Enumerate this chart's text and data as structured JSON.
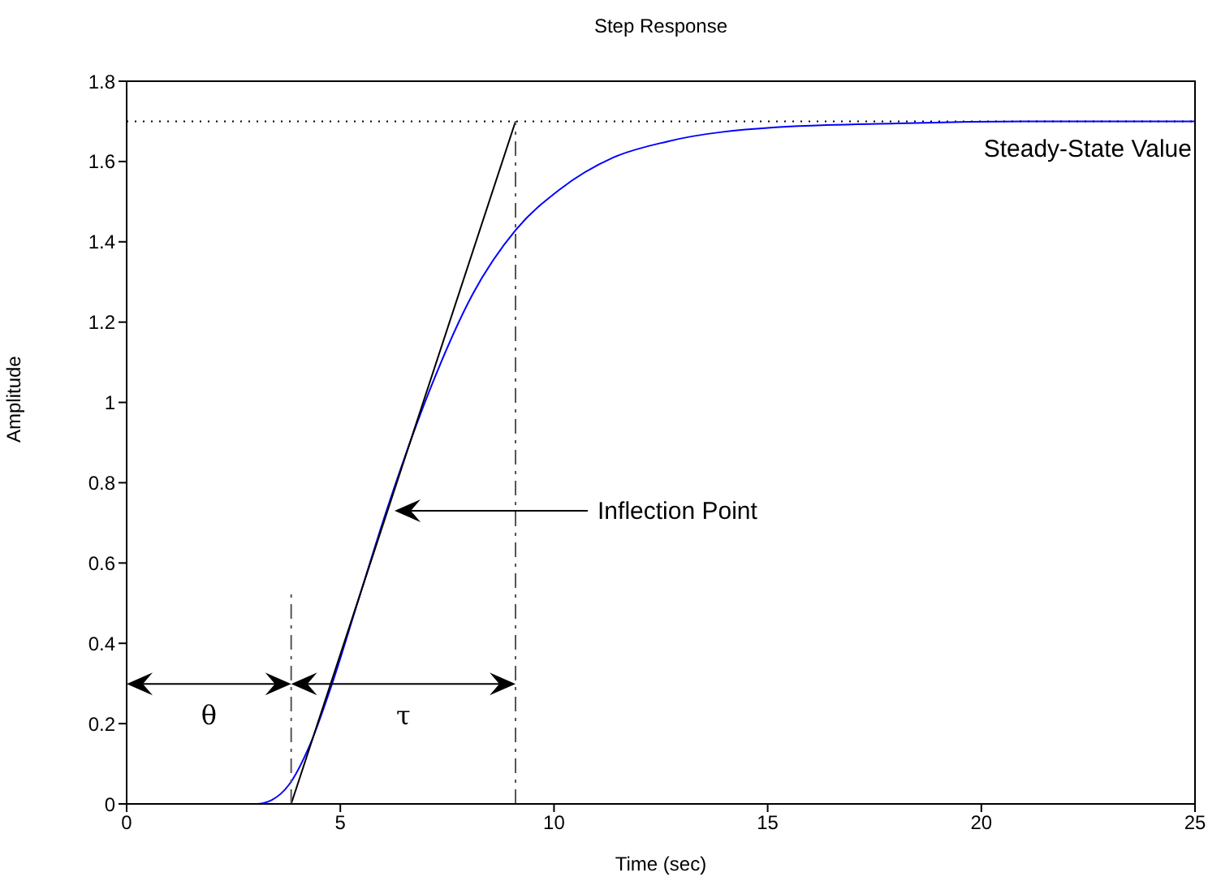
{
  "chart_data": {
    "type": "line",
    "title": "Step Response",
    "xlabel": "Time (sec)",
    "ylabel": "Amplitude",
    "xlim": [
      0,
      25
    ],
    "xticks": [
      0,
      5,
      10,
      15,
      20,
      25
    ],
    "ylim": [
      0,
      1.8
    ],
    "yticks": [
      0,
      0.2,
      0.4,
      0.6,
      0.8,
      1,
      1.2,
      1.4,
      1.6,
      1.8
    ],
    "grid": false,
    "series": [
      {
        "color": "#0000ff",
        "x": [
          0,
          3.04,
          3.4,
          3.8,
          4.3,
          4.81,
          5.4,
          6.08,
          7.09,
          8.1,
          9.11,
          10.13,
          11.39,
          12.66,
          15.19,
          18,
          21,
          25
        ],
        "values": [
          0,
          0,
          0.01,
          0.048,
          0.15,
          0.3,
          0.5,
          0.73,
          1.03,
          1.27,
          1.43,
          1.53,
          1.61,
          1.65,
          1.685,
          1.695,
          1.7,
          1.7
        ]
      },
      {
        "color": "#000000",
        "x": [
          3.85,
          9.1
        ],
        "values": [
          0,
          1.7
        ]
      },
      {
        "color": "#555555",
        "x": [
          3.85,
          3.85
        ],
        "values": [
          0,
          0.53
        ],
        "line_style": "dashed"
      },
      {
        "color": "#555555",
        "x": [
          9.1,
          9.1
        ],
        "values": [
          0,
          1.7
        ],
        "line_style": "dashed"
      }
    ],
    "ref_lines": [
      {
        "axis": "y",
        "value": 1.7,
        "label": "Steady-State Value",
        "line_style": "dotted",
        "color": "#000000"
      }
    ],
    "annotations": [
      {
        "text": "Inflection Point",
        "x": 6.27,
        "y": 0.73
      },
      "θ",
      "τ"
    ]
  }
}
